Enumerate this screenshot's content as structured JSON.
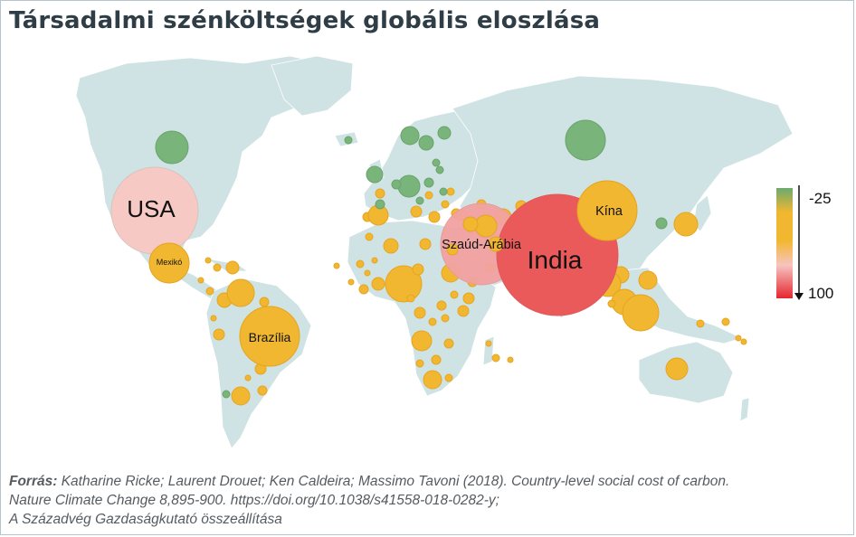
{
  "title": "Társadalmi szénköltségek globális eloszlása",
  "legend": {
    "top_label": "-25",
    "bottom_label": "100",
    "colors": [
      "#6aaa6e",
      "#f2b731",
      "#f7c4c0",
      "#e5262f"
    ]
  },
  "colors": {
    "land": "#cfe2e4",
    "border": "#ffffff",
    "bubble_stroke": "#e6a41e",
    "big_stroke": "#d9c3bd"
  },
  "labels": [
    {
      "id": "usa",
      "text": "USA"
    },
    {
      "id": "mexiko",
      "text": "Mexikó"
    },
    {
      "id": "brazilia",
      "text": "Brazília"
    },
    {
      "id": "szaud",
      "text": "Szaúd-Arábia"
    },
    {
      "id": "india",
      "text": "India"
    },
    {
      "id": "kina",
      "text": "Kína"
    }
  ],
  "source": {
    "label": "Forrás:",
    "line1": " Katharine Ricke; Laurent Drouet; Ken Caldeira; Massimo Tavoni (2018). Country-level social cost of carbon.",
    "line2": "Nature Climate Change 8,895-900. https://doi.org/10.1038/s41558-018-0282-y;",
    "line3": "A Századvég Gazdaságkutató összeállítása"
  }
}
